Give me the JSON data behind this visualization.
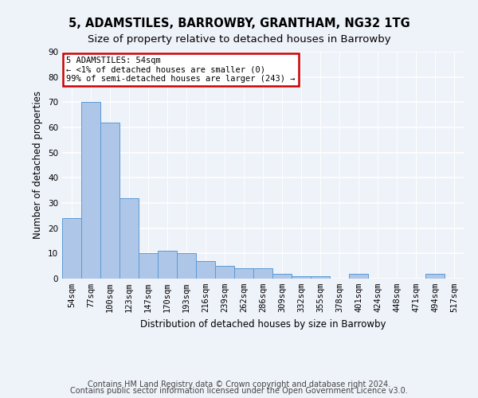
{
  "title": "5, ADAMSTILES, BARROWBY, GRANTHAM, NG32 1TG",
  "subtitle": "Size of property relative to detached houses in Barrowby",
  "xlabel": "Distribution of detached houses by size in Barrowby",
  "ylabel": "Number of detached properties",
  "categories": [
    "54sqm",
    "77sqm",
    "100sqm",
    "123sqm",
    "147sqm",
    "170sqm",
    "193sqm",
    "216sqm",
    "239sqm",
    "262sqm",
    "286sqm",
    "309sqm",
    "332sqm",
    "355sqm",
    "378sqm",
    "401sqm",
    "424sqm",
    "448sqm",
    "471sqm",
    "494sqm",
    "517sqm"
  ],
  "values": [
    24,
    70,
    62,
    32,
    10,
    11,
    10,
    7,
    5,
    4,
    4,
    2,
    1,
    1,
    0,
    2,
    0,
    0,
    0,
    2,
    0
  ],
  "bar_color": "#aec6e8",
  "bar_edge_color": "#5b9bd5",
  "annotation_text": "5 ADAMSTILES: 54sqm\n← <1% of detached houses are smaller (0)\n99% of semi-detached houses are larger (243) →",
  "annotation_box_color": "#ffffff",
  "annotation_box_edge_color": "#cc0000",
  "ylim": [
    0,
    90
  ],
  "yticks": [
    0,
    10,
    20,
    30,
    40,
    50,
    60,
    70,
    80,
    90
  ],
  "footer_line1": "Contains HM Land Registry data © Crown copyright and database right 2024.",
  "footer_line2": "Contains public sector information licensed under the Open Government Licence v3.0.",
  "background_color": "#eef2f9",
  "plot_background_color": "#eef2f9",
  "grid_color": "#ffffff",
  "title_fontsize": 10.5,
  "subtitle_fontsize": 9.5,
  "axis_label_fontsize": 8.5,
  "tick_fontsize": 7.5,
  "footer_fontsize": 7.0
}
